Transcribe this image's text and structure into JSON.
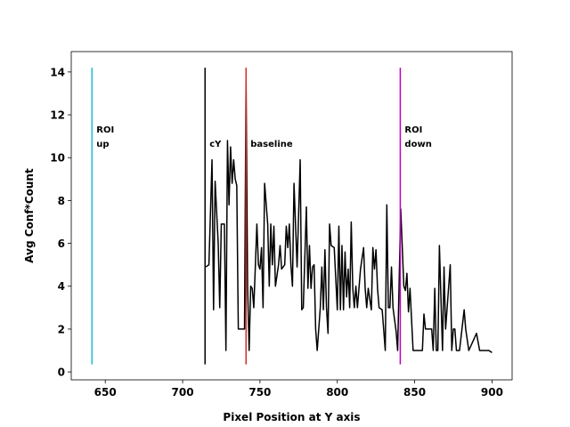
{
  "chart_data": {
    "type": "line",
    "x_label": "Pixel Position at Y axis",
    "y_label": "Avg Conf*Count",
    "xlim": [
      628,
      913
    ],
    "ylim": [
      -0.37,
      14.95
    ],
    "xticks": [
      650,
      700,
      750,
      800,
      850,
      900
    ],
    "yticks": [
      0,
      2,
      4,
      6,
      8,
      10,
      12,
      14
    ],
    "series": [
      {
        "color": "#000000",
        "x": [
          715,
          717,
          719,
          720,
          721,
          723,
          724,
          725,
          727,
          728,
          729,
          730,
          731,
          732,
          733,
          734,
          735,
          736,
          740,
          741,
          742,
          743,
          744,
          745,
          746,
          747,
          748,
          749,
          750,
          751,
          752,
          753,
          755,
          756,
          757,
          758,
          759,
          760,
          762,
          763,
          764,
          766,
          767,
          768,
          769,
          770,
          771,
          772,
          774,
          776,
          777,
          778,
          780,
          781,
          782,
          783,
          784,
          785,
          786,
          787,
          789,
          790,
          791,
          792,
          793,
          794,
          795,
          796,
          798,
          800,
          801,
          802,
          803,
          804,
          805,
          806,
          807,
          808,
          809,
          810,
          811,
          812,
          813,
          815,
          817,
          818,
          819,
          820,
          822,
          823,
          824,
          825,
          826,
          827,
          829,
          831,
          832,
          833,
          834,
          835,
          836,
          838,
          839,
          841,
          843,
          844,
          845,
          846,
          847,
          849,
          851,
          855,
          856,
          857,
          861,
          862,
          863,
          864,
          865,
          866,
          868,
          869,
          870,
          873,
          874,
          875,
          876,
          877,
          879,
          882,
          883,
          885,
          890,
          892,
          898,
          900
        ],
        "values": [
          4.9,
          5.0,
          9.9,
          2.9,
          8.9,
          6.0,
          3.0,
          6.9,
          6.9,
          1.0,
          10.8,
          7.8,
          10.5,
          8.8,
          9.9,
          9.0,
          8.7,
          2.0,
          2.0,
          13.6,
          4.0,
          1.0,
          4.0,
          3.9,
          3.0,
          4.9,
          6.9,
          5.0,
          4.8,
          5.8,
          3.0,
          8.8,
          6.9,
          4.0,
          6.9,
          5.0,
          6.8,
          4.0,
          5.0,
          5.9,
          4.8,
          5.0,
          6.8,
          5.8,
          6.9,
          5.0,
          4.0,
          8.8,
          4.9,
          9.9,
          2.9,
          3.0,
          7.7,
          3.9,
          5.9,
          3.9,
          4.9,
          5.0,
          2.0,
          1.0,
          3.0,
          4.9,
          2.9,
          5.7,
          3.0,
          1.8,
          6.9,
          5.9,
          5.8,
          2.9,
          6.8,
          2.9,
          5.9,
          2.9,
          5.6,
          3.5,
          4.8,
          3.0,
          7.0,
          3.9,
          3.0,
          4.0,
          3.0,
          4.8,
          5.8,
          3.9,
          3.0,
          3.9,
          2.9,
          5.8,
          4.8,
          5.7,
          3.9,
          3.0,
          2.9,
          1.0,
          7.8,
          3.0,
          3.0,
          4.9,
          3.0,
          1.9,
          1.0,
          7.6,
          4.0,
          3.8,
          4.6,
          2.8,
          3.9,
          1.0,
          1.0,
          1.0,
          2.7,
          2.0,
          2.0,
          1.0,
          3.9,
          1.0,
          1.0,
          5.9,
          1.0,
          4.9,
          2.0,
          5.0,
          1.0,
          2.0,
          2.0,
          1.0,
          1.0,
          2.9,
          2.0,
          1.0,
          1.8,
          1.0,
          1.0,
          0.9
        ]
      }
    ],
    "vlines": [
      {
        "x": 641.4,
        "ymin": 0.35,
        "ymax": 14.2,
        "color": "#17becf",
        "label": [
          "ROI",
          "up"
        ]
      },
      {
        "x": 714.5,
        "ymin": 0.35,
        "ymax": 14.2,
        "color": "#000000",
        "label": [
          "cY"
        ]
      },
      {
        "x": 741,
        "ymin": 0.35,
        "ymax": 14.2,
        "color": "#d62728",
        "label": [
          "baseline"
        ]
      },
      {
        "x": 840.7,
        "ymin": 0.35,
        "ymax": 14.2,
        "color": "#bf00bf",
        "label": [
          "ROI",
          "down"
        ]
      }
    ]
  }
}
